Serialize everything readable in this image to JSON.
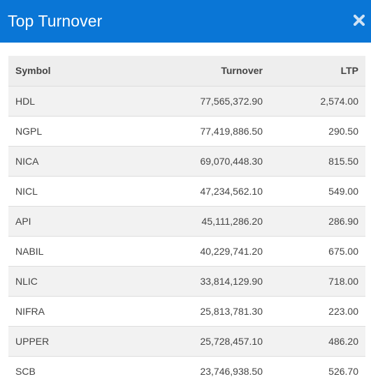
{
  "header": {
    "title": "Top Turnover",
    "close_icon": "close-icon"
  },
  "table": {
    "columns": [
      "Symbol",
      "Turnover",
      "LTP"
    ],
    "rows": [
      [
        "HDL",
        "77,565,372.90",
        "2,574.00"
      ],
      [
        "NGPL",
        "77,419,886.50",
        "290.50"
      ],
      [
        "NICA",
        "69,070,448.30",
        "815.50"
      ],
      [
        "NICL",
        "47,234,562.10",
        "549.00"
      ],
      [
        "API",
        "45,111,286.20",
        "286.90"
      ],
      [
        "NABIL",
        "40,229,741.20",
        "675.00"
      ],
      [
        "NLIC",
        "33,814,129.90",
        "718.00"
      ],
      [
        "NIFRA",
        "25,813,781.30",
        "223.00"
      ],
      [
        "UPPER",
        "25,728,457.10",
        "486.20"
      ],
      [
        "SCB",
        "23,746,938.50",
        "526.70"
      ]
    ]
  },
  "colors": {
    "header_bg": "#0a76d6",
    "header_text": "#ffffff",
    "row_alt": "#f2f2f2",
    "table_header_bg": "#eeeeee"
  }
}
